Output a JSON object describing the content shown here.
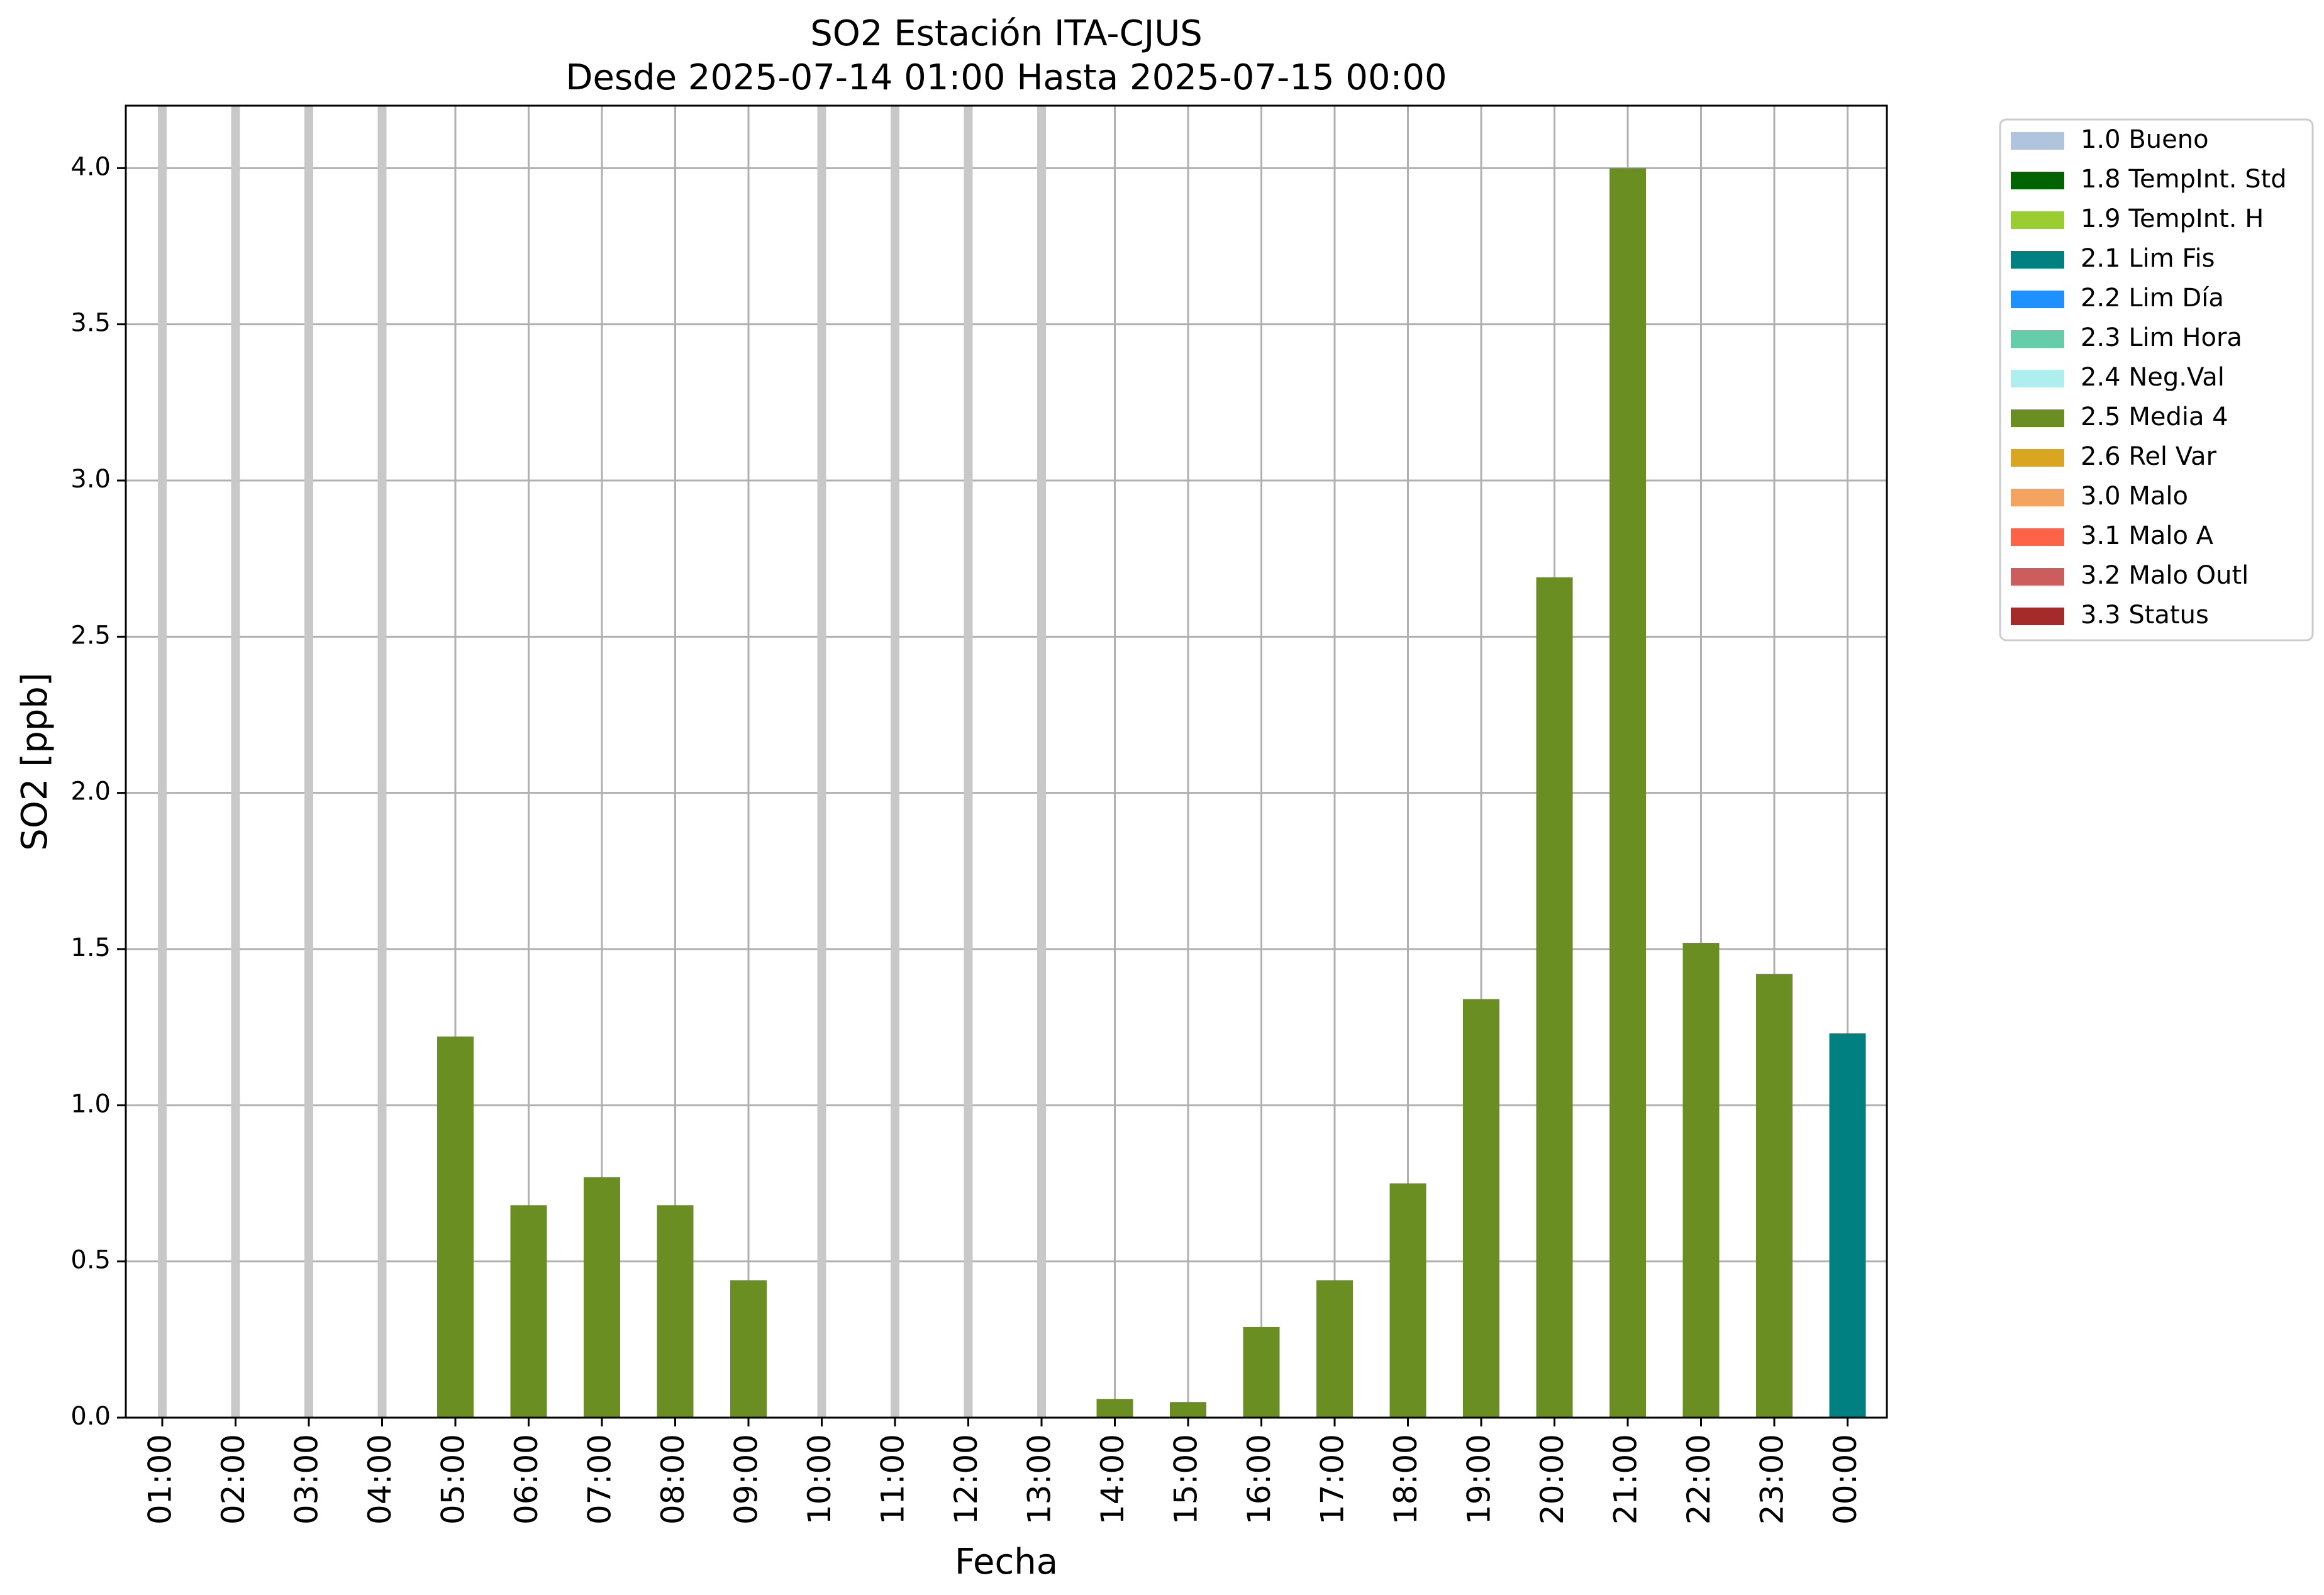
{
  "chart_data": {
    "type": "bar",
    "title": "SO2 Estación ITA-CJUS",
    "subtitle": "Desde 2025-07-14 01:00 Hasta 2025-07-15 00:00",
    "xlabel": "Fecha",
    "ylabel": "SO2 [ppb]",
    "ylim": [
      0,
      4.2
    ],
    "yticks": [
      0.0,
      0.5,
      1.0,
      1.5,
      2.0,
      2.5,
      3.0,
      3.5,
      4.0
    ],
    "ytick_labels": [
      "0.0",
      "0.5",
      "1.0",
      "1.5",
      "2.0",
      "2.5",
      "3.0",
      "3.5",
      "4.0"
    ],
    "grid": true,
    "legend_position": "outside-right",
    "categories": [
      "01:00",
      "02:00",
      "03:00",
      "04:00",
      "05:00",
      "06:00",
      "07:00",
      "08:00",
      "09:00",
      "10:00",
      "11:00",
      "12:00",
      "13:00",
      "14:00",
      "15:00",
      "16:00",
      "17:00",
      "18:00",
      "19:00",
      "20:00",
      "21:00",
      "22:00",
      "23:00",
      "00:00"
    ],
    "values": [
      null,
      null,
      null,
      null,
      1.22,
      0.68,
      0.77,
      0.68,
      0.44,
      null,
      null,
      null,
      null,
      0.06,
      0.05,
      0.29,
      0.44,
      0.75,
      1.34,
      2.69,
      4.0,
      1.52,
      1.42,
      1.23
    ],
    "flags": [
      null,
      null,
      null,
      null,
      "2.5 Media 4",
      "2.5 Media 4",
      "2.5 Media 4",
      "2.5 Media 4",
      "2.5 Media 4",
      null,
      null,
      null,
      null,
      "2.5 Media 4",
      "2.5 Media 4",
      "2.5 Media 4",
      "2.5 Media 4",
      "2.5 Media 4",
      "2.5 Media 4",
      "2.5 Media 4",
      "2.5 Media 4",
      "2.5 Media 4",
      "2.5 Media 4",
      "2.1 Lim Fis"
    ],
    "missing_marker_color": "#c8c8c8",
    "legend": [
      {
        "label": "1.0 Bueno",
        "color": "#b0c4de"
      },
      {
        "label": "1.8 TempInt. Std",
        "color": "#006400"
      },
      {
        "label": "1.9 TempInt. H",
        "color": "#9acd32"
      },
      {
        "label": "2.1 Lim Fis",
        "color": "#008080"
      },
      {
        "label": "2.2 Lim Día",
        "color": "#1e90ff"
      },
      {
        "label": "2.3 Lim Hora",
        "color": "#66cdaa"
      },
      {
        "label": "2.4 Neg.Val",
        "color": "#afeeee"
      },
      {
        "label": "2.5 Media 4",
        "color": "#6b8e23"
      },
      {
        "label": "2.6 Rel Var",
        "color": "#daa520"
      },
      {
        "label": "3.0 Malo",
        "color": "#f4a460"
      },
      {
        "label": "3.1 Malo A",
        "color": "#ff6347"
      },
      {
        "label": "3.2 Malo Outl",
        "color": "#cd5c5c"
      },
      {
        "label": "3.3 Status",
        "color": "#a52a2a"
      }
    ]
  }
}
